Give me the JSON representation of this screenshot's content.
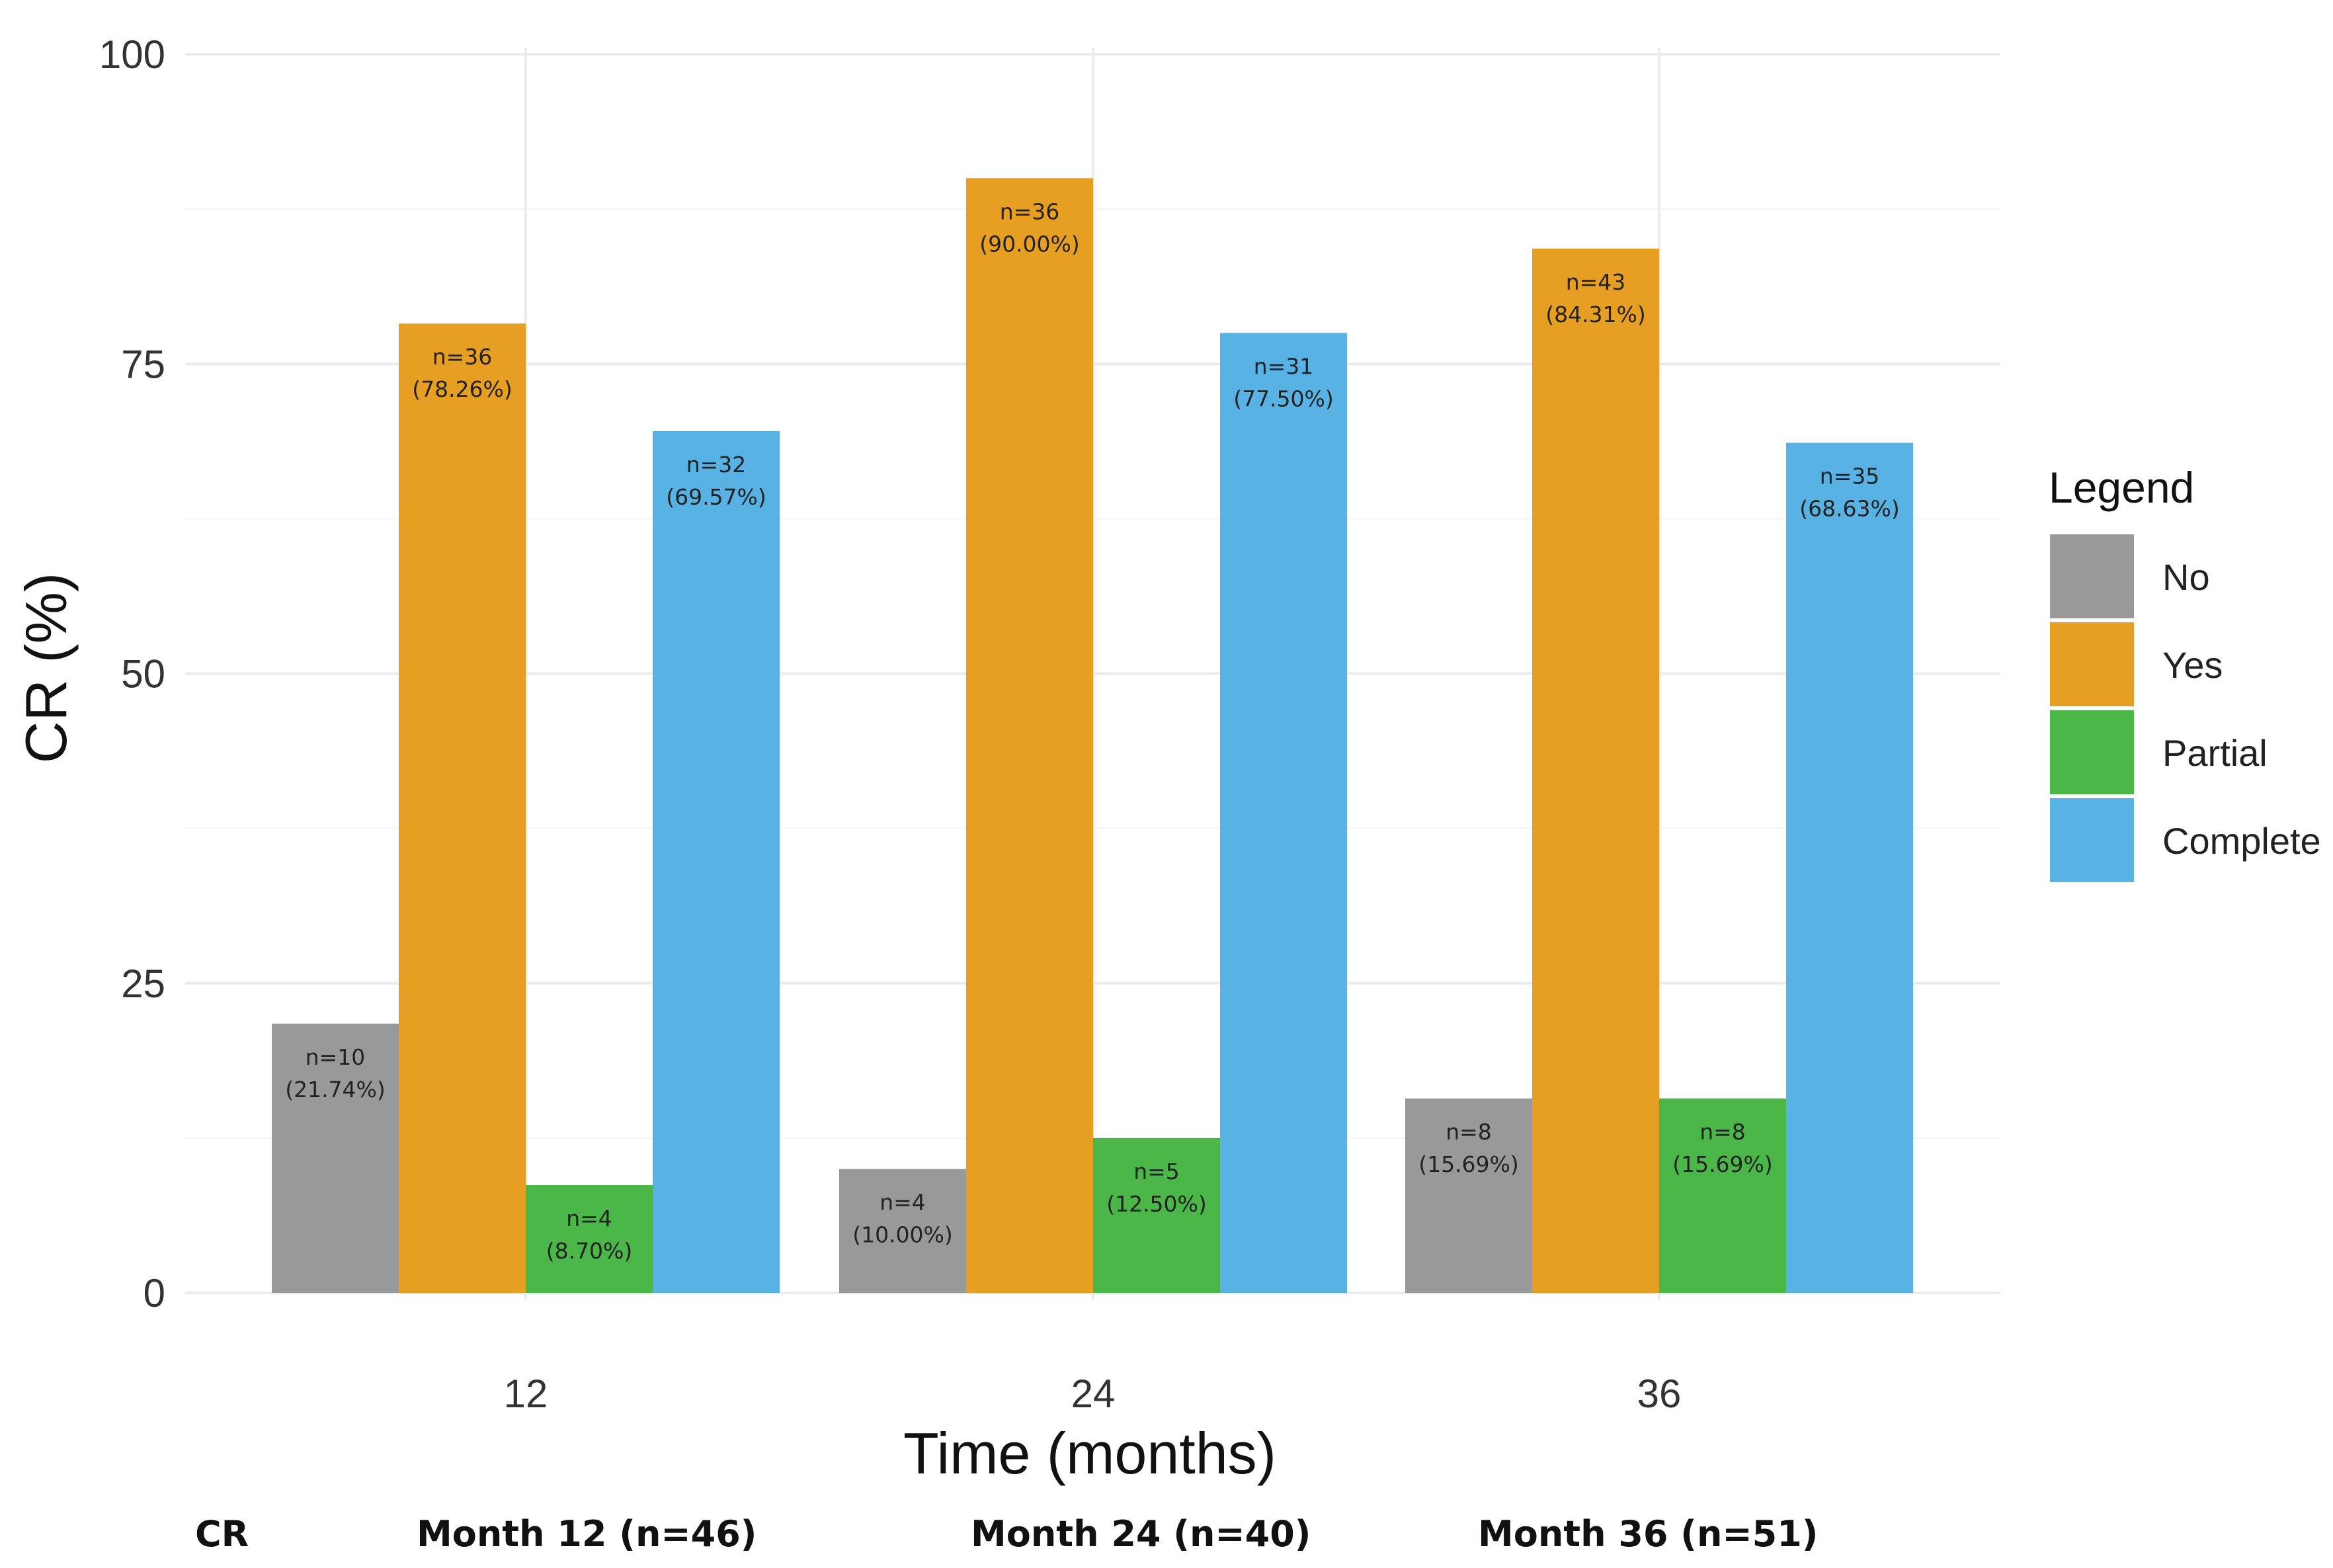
{
  "chart_data": {
    "type": "bar",
    "ylabel": "CR (%)",
    "xlabel": "Time (months)",
    "ylim": [
      0,
      100
    ],
    "yticks": [
      0,
      25,
      50,
      75,
      100
    ],
    "grid": true,
    "categories": [
      "12",
      "24",
      "36"
    ],
    "legend": {
      "title": "Legend",
      "position": "right"
    },
    "series": [
      {
        "name": "No",
        "color": "#999999",
        "values": [
          21.74,
          10.0,
          15.69
        ],
        "labels": [
          [
            "n=10",
            "(21.74%)"
          ],
          [
            "n=4",
            "(10.00%)"
          ],
          [
            "n=8",
            "(15.69%)"
          ]
        ]
      },
      {
        "name": "Yes",
        "color": "#E69F22",
        "values": [
          78.26,
          90.0,
          84.31
        ],
        "labels": [
          [
            "n=36",
            "(78.26%)"
          ],
          [
            "n=36",
            "(90.00%)"
          ],
          [
            "n=43",
            "(84.31%)"
          ]
        ]
      },
      {
        "name": "Partial",
        "color": "#4BB749",
        "values": [
          8.7,
          12.5,
          15.69
        ],
        "labels": [
          [
            "n=4",
            "(8.70%)"
          ],
          [
            "n=5",
            "(12.50%)"
          ],
          [
            "n=8",
            "(15.69%)"
          ]
        ]
      },
      {
        "name": "Complete",
        "color": "#58B2E4",
        "values": [
          69.57,
          77.5,
          68.63
        ],
        "labels": [
          [
            "n=32",
            "(69.57%)"
          ],
          [
            "n=31",
            "(77.50%)"
          ],
          [
            "n=35",
            "(68.63%)"
          ]
        ]
      }
    ],
    "table_row": {
      "label": "CR",
      "cells": [
        "Month 12 (n=46)",
        "Month 24 (n=40)",
        "Month 36 (n=51)"
      ]
    }
  }
}
